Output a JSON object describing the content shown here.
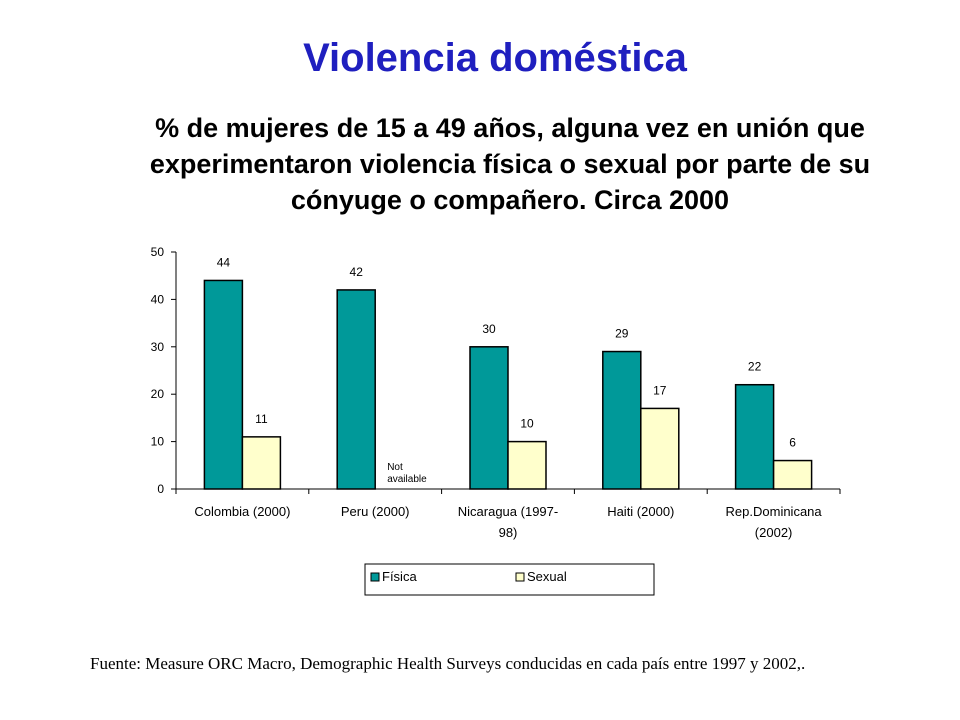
{
  "title": "Violencia doméstica",
  "subtitle_lines": [
    "% de mujeres de 15 a 49 años, alguna vez en unión que",
    "experimentaron violencia física o sexual por parte de su",
    "cónyuge o compañero. Circa 2000"
  ],
  "chart_data": {
    "type": "bar",
    "categories": [
      [
        "Colombia (2000)"
      ],
      [
        "Peru (2000)"
      ],
      [
        "Nicaragua (1997-",
        "98)"
      ],
      [
        "Haiti (2000)"
      ],
      [
        "Rep.Dominicana",
        "(2002)"
      ]
    ],
    "series": [
      {
        "name": "Física",
        "values": [
          44,
          42,
          30,
          29,
          22
        ],
        "color": "#009999"
      },
      {
        "name": "Sexual",
        "values": [
          11,
          null,
          10,
          17,
          6
        ],
        "color": "#ffffcc"
      }
    ],
    "data_labels": [
      [
        "44",
        "42",
        "30",
        "29",
        "22"
      ],
      [
        "11",
        null,
        "10",
        "17",
        "6"
      ]
    ],
    "missing_note": [
      "Not",
      "available"
    ],
    "ylim": [
      0,
      50
    ],
    "yticks": [
      0,
      10,
      20,
      30,
      40,
      50
    ],
    "grid": false,
    "legend_position": "bottom-center"
  },
  "source": "Fuente: Measure ORC Macro, Demographic Health Surveys conducidas en cada país entre 1997 y 2002,."
}
